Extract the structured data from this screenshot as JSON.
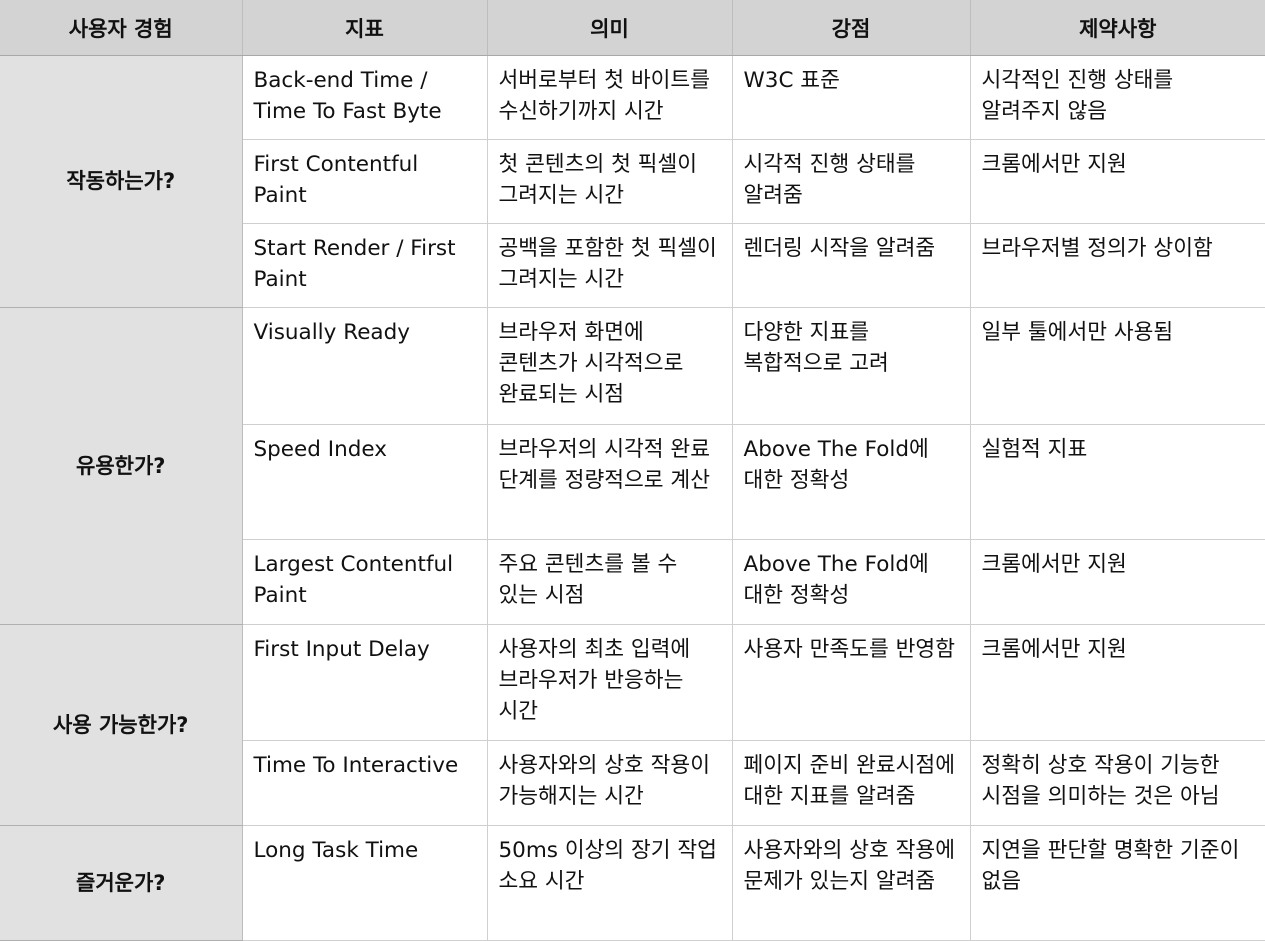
{
  "table": {
    "headers": [
      "사용자 경험",
      "지표",
      "의미",
      "강점",
      "제약사항"
    ],
    "groups": [
      {
        "label": "작동하는가?",
        "rows": [
          {
            "metric": "Back-end Time / Time To Fast Byte",
            "meaning": "서버로부터 첫 바이트를 수신하기까지 시간",
            "strength": "W3C 표준",
            "limitation": "시각적인 진행 상태를 알려주지 않음"
          },
          {
            "metric": "First Contentful Paint",
            "meaning": "첫 콘텐츠의 첫 픽셀이 그려지는 시간",
            "strength": "시각적 진행 상태를 알려줌",
            "limitation": "크롬에서만 지원"
          },
          {
            "metric": "Start Render / First Paint",
            "meaning": "공백을 포함한 첫 픽셀이 그려지는 시간",
            "strength": "렌더링 시작을 알려줌",
            "limitation": "브라우저별 정의가 상이함"
          }
        ]
      },
      {
        "label": "유용한가?",
        "rows": [
          {
            "metric": "Visually Ready",
            "meaning": "브라우저 화면에 콘텐츠가 시각적으로 완료되는 시점",
            "strength": "다양한 지표를 복합적으로 고려",
            "limitation": "일부 툴에서만 사용됨"
          },
          {
            "metric": "Speed Index",
            "meaning": "브라우저의 시각적 완료 단계를 정량적으로 계산",
            "strength": "Above The Fold에 대한 정확성",
            "limitation": "실험적 지표"
          },
          {
            "metric": "Largest Contentful Paint",
            "meaning": "주요 콘텐츠를 볼 수 있는 시점",
            "strength": "Above The Fold에 대한 정확성",
            "limitation": "크롬에서만 지원"
          }
        ]
      },
      {
        "label": "사용 가능한가?",
        "rows": [
          {
            "metric": "First Input Delay",
            "meaning": "사용자의 최초 입력에 브라우저가 반응하는 시간",
            "strength": "사용자 만족도를 반영함",
            "limitation": "크롬에서만 지원"
          },
          {
            "metric": "Time To Interactive",
            "meaning": "사용자와의 상호 작용이 가능해지는 시간",
            "strength": "페이지 준비 완료시점에 대한 지표를 알려줌",
            "limitation": "정확히 상호 작용이 기능한 시점을 의미하는 것은 아님"
          }
        ]
      },
      {
        "label": "즐거운가?",
        "rows": [
          {
            "metric": "Long Task Time",
            "meaning": "50ms 이상의 장기 작업 소요 시간",
            "strength": "사용자와의 상호 작용에 문제가 있는지 알려줌",
            "limitation": "지연을 판단할 명확한 기준이 없음"
          }
        ]
      }
    ]
  }
}
